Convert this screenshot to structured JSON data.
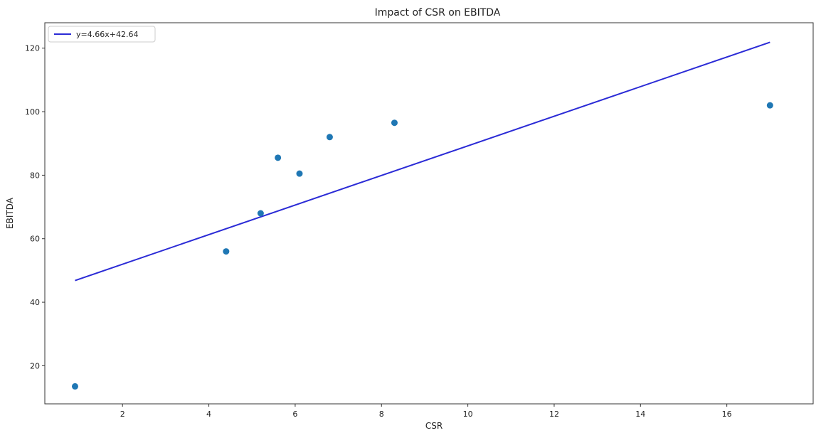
{
  "chart_data": {
    "type": "scatter",
    "title": "Impact of CSR on EBITDA",
    "xlabel": "CSR",
    "ylabel": "EBITDA",
    "xlim": [
      0.2,
      18.0
    ],
    "ylim": [
      8,
      128
    ],
    "xticks": [
      2,
      4,
      6,
      8,
      10,
      12,
      14,
      16
    ],
    "yticks": [
      20,
      40,
      60,
      80,
      100,
      120
    ],
    "grid": false,
    "legend": {
      "position": "top-left",
      "entries": [
        "y=4.66x+42.64"
      ]
    },
    "series": [
      {
        "kind": "points",
        "color": "#1f77b4",
        "x": [
          0.9,
          4.4,
          5.2,
          5.6,
          6.1,
          6.8,
          8.3,
          17.0
        ],
        "y": [
          13.5,
          56.0,
          68.0,
          85.5,
          80.5,
          92.0,
          96.5,
          102.0
        ]
      },
      {
        "kind": "fit-line",
        "name": "y=4.66x+42.64",
        "color": "#2b2bd6",
        "slope": 4.66,
        "intercept": 42.64,
        "x_range": [
          0.9,
          17.0
        ]
      }
    ]
  }
}
